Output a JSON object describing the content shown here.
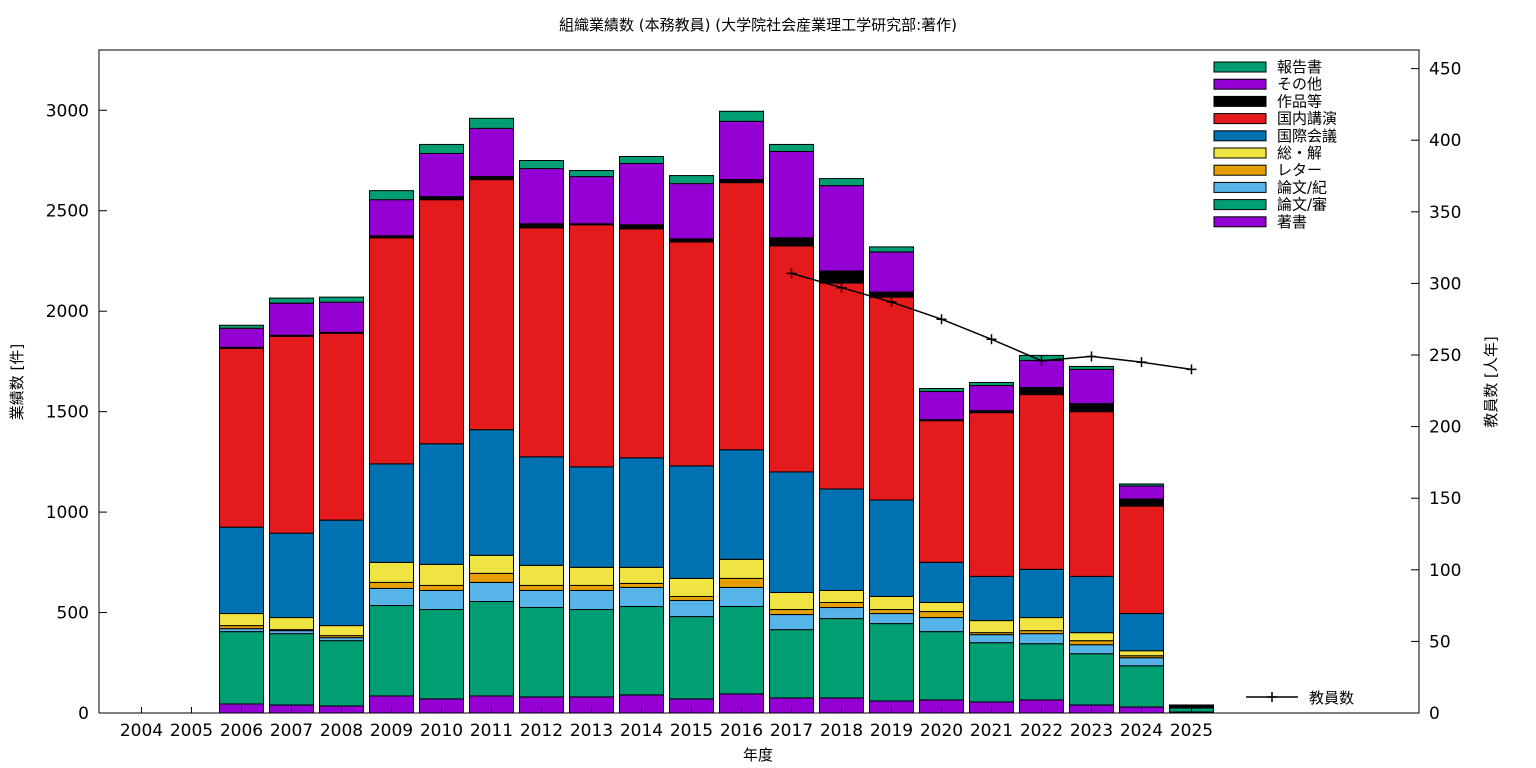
{
  "chart_data": {
    "type": "bar",
    "stacked": true,
    "title": "組織業績数 (本務教員) (大学院社会産業理工学研究部:著作)",
    "xlabel": "年度",
    "ylabel": "業績数 [件]",
    "y2label": "教員数 [人年]",
    "ylim": [
      0,
      3300
    ],
    "y2lim": [
      0,
      463
    ],
    "yticks": [
      "0",
      "500",
      "1000",
      "1500",
      "2000",
      "2500",
      "3000"
    ],
    "y2ticks": [
      "0",
      "50",
      "100",
      "150",
      "200",
      "250",
      "300",
      "350",
      "400",
      "450"
    ],
    "grid": false,
    "legend_position": "top-right",
    "categories": [
      "2004",
      "2005",
      "2006",
      "2007",
      "2008",
      "2009",
      "2010",
      "2011",
      "2012",
      "2013",
      "2014",
      "2015",
      "2016",
      "2017",
      "2018",
      "2019",
      "2020",
      "2021",
      "2022",
      "2023",
      "2024",
      "2025"
    ],
    "series": [
      {
        "name": "著書",
        "color": "#9400d3",
        "values": [
          0,
          0,
          45,
          40,
          35,
          85,
          70,
          85,
          80,
          80,
          90,
          70,
          95,
          75,
          75,
          60,
          65,
          55,
          65,
          40,
          30,
          5
        ]
      },
      {
        "name": "論文/審",
        "color": "#009e73",
        "values": [
          0,
          0,
          360,
          355,
          325,
          450,
          445,
          470,
          445,
          435,
          440,
          410,
          435,
          340,
          395,
          385,
          340,
          295,
          280,
          255,
          205,
          20
        ]
      },
      {
        "name": "論文/紀",
        "color": "#56b4e9",
        "values": [
          0,
          0,
          15,
          15,
          15,
          85,
          95,
          95,
          85,
          95,
          95,
          80,
          95,
          75,
          55,
          50,
          70,
          40,
          50,
          45,
          40,
          3
        ]
      },
      {
        "name": "レター",
        "color": "#e69f00",
        "values": [
          0,
          0,
          15,
          5,
          10,
          30,
          25,
          45,
          25,
          25,
          20,
          20,
          45,
          25,
          25,
          20,
          30,
          10,
          15,
          20,
          10,
          0
        ]
      },
      {
        "name": "総・解",
        "color": "#f0e442",
        "values": [
          0,
          0,
          60,
          60,
          50,
          100,
          105,
          90,
          100,
          90,
          80,
          90,
          95,
          85,
          60,
          65,
          45,
          60,
          65,
          40,
          25,
          2
        ]
      },
      {
        "name": "国際会議",
        "color": "#0072b2",
        "values": [
          0,
          0,
          430,
          420,
          525,
          490,
          600,
          625,
          540,
          500,
          545,
          560,
          545,
          600,
          505,
          480,
          200,
          220,
          240,
          280,
          185,
          3
        ]
      },
      {
        "name": "国内講演",
        "color": "#e41a1c",
        "values": [
          0,
          0,
          890,
          980,
          930,
          1125,
          1215,
          1245,
          1140,
          1205,
          1140,
          1115,
          1330,
          1125,
          1025,
          1010,
          705,
          815,
          870,
          820,
          535,
          2
        ]
      },
      {
        "name": "作品等",
        "color": "#000000",
        "values": [
          0,
          0,
          5,
          5,
          5,
          10,
          15,
          15,
          20,
          5,
          20,
          15,
          15,
          40,
          60,
          25,
          5,
          10,
          35,
          40,
          35,
          0
        ]
      },
      {
        "name": "その他",
        "color": "#9400d3",
        "values": [
          0,
          0,
          95,
          160,
          150,
          180,
          215,
          240,
          275,
          235,
          305,
          275,
          290,
          430,
          425,
          200,
          140,
          125,
          135,
          170,
          65,
          5
        ]
      },
      {
        "name": "報告書",
        "color": "#009e73",
        "values": [
          0,
          0,
          15,
          25,
          25,
          45,
          45,
          50,
          40,
          30,
          35,
          40,
          50,
          35,
          35,
          25,
          15,
          15,
          25,
          15,
          10,
          0
        ]
      }
    ],
    "line_series": {
      "name": "教員数",
      "color": "#000000",
      "axis": "right",
      "x": [
        "2017",
        "2018",
        "2019",
        "2020",
        "2021",
        "2022",
        "2023",
        "2024",
        "2025"
      ],
      "values": [
        307,
        297,
        287,
        275,
        261,
        246,
        249,
        245,
        240
      ]
    }
  }
}
